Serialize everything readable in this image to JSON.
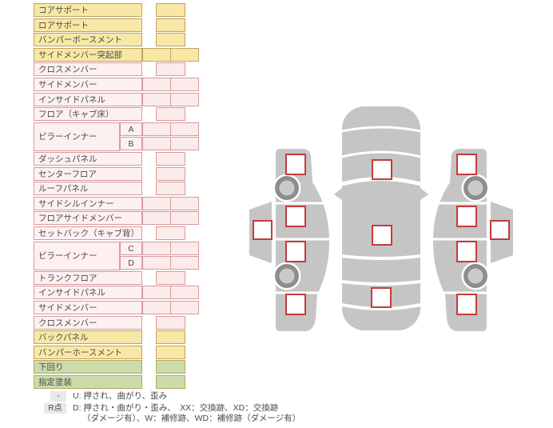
{
  "colors": {
    "categories": {
      "yellow": {
        "fill": "#f8e8a6",
        "border": "#c1a264"
      },
      "pink": {
        "fill": "#fdf0f0",
        "border": "#d79b9b"
      },
      "green": {
        "fill": "#cadcaa",
        "border": "#c2a35e"
      }
    },
    "cell": {
      "yellow": {
        "fill": "#f8e8a6",
        "border": "#c1a264"
      },
      "pink": {
        "fill": "#fcebeb",
        "border": "#d79b9b"
      },
      "green": {
        "fill": "#cadcaa",
        "border": "#c2a35e"
      }
    },
    "diagram": {
      "body": "#c5c5c5",
      "wheel_ring": "#8d8d8d",
      "wheel_hub": "#cacaca",
      "marker_border": "#c43b3b",
      "marker_fill": "#ffffff"
    },
    "legend_badge_bg": "#e8e8e8",
    "text": "#4a4a4a"
  },
  "parts_table": {
    "rows": [
      {
        "label": "コアサポート",
        "category": "yellow",
        "cells": 1
      },
      {
        "label": "ロアサポート",
        "category": "yellow",
        "cells": 1
      },
      {
        "label": "バンパーボースメント",
        "category": "yellow",
        "cells": 1
      },
      {
        "label": "サイドメンバー突起部",
        "category": "yellow",
        "cells": 2
      },
      {
        "label": "クロスメンバー",
        "category": "pink",
        "cells": 1
      },
      {
        "label": "サイドメンバー",
        "category": "pink",
        "cells": 2
      },
      {
        "label": "インサイドパネル",
        "category": "pink",
        "cells": 2
      },
      {
        "label": "フロア（キャブ床）",
        "category": "pink",
        "cells": 1
      },
      {
        "label": "ピラーインナー",
        "sub": "A",
        "rowspan": 2,
        "category": "pink",
        "cells": 2
      },
      {
        "sub": "B",
        "continuation": true,
        "category": "pink",
        "cells": 2
      },
      {
        "label": "ダッシュパネル",
        "category": "pink",
        "cells": 1
      },
      {
        "label": "センターフロア",
        "category": "pink",
        "cells": 1
      },
      {
        "label": "ルーフパネル",
        "category": "pink",
        "cells": 1
      },
      {
        "label": "サイドシルインナー",
        "category": "pink",
        "cells": 2
      },
      {
        "label": "フロアサイドメンバー",
        "category": "pink",
        "cells": 2
      },
      {
        "label": "セットバック（キャブ背）",
        "category": "pink",
        "cells": 1
      },
      {
        "label": "ピラーインナー",
        "sub": "C",
        "rowspan": 2,
        "category": "pink",
        "cells": 2
      },
      {
        "sub": "D",
        "continuation": true,
        "category": "pink",
        "cells": 2
      },
      {
        "label": "トランクフロア",
        "category": "pink",
        "cells": 1
      },
      {
        "label": "インサイドパネル",
        "category": "pink",
        "cells": 2
      },
      {
        "label": "サイドメンバー",
        "category": "pink",
        "cells": 2
      },
      {
        "label": "クロスメンバー",
        "category": "pink",
        "cells": 1
      },
      {
        "label": "バックパネル",
        "category": "yellow",
        "cells": 1
      },
      {
        "label": "バンパーホースメント",
        "category": "yellow",
        "cells": 1
      },
      {
        "label": "下回り",
        "category": "green",
        "cells": 1
      },
      {
        "label": "指定塗装",
        "category": "green",
        "cells": 1
      }
    ]
  },
  "legend": {
    "row1": {
      "badge": "-",
      "text": "U: 押され、曲がり、歪み"
    },
    "row2": {
      "badge": "R点",
      "line1": "D: 押され・曲がり・歪み、　XX：交換跡、XD：交換跡",
      "line2": "（ダメージ有）、W：補修跡、WD：補修跡（ダメージ有）"
    }
  },
  "diagram": {
    "markers": [
      "top-front",
      "top-center",
      "top-rear",
      "left-front-fender",
      "left-front-door",
      "left-rear-door",
      "left-rear-quarter",
      "left-sill",
      "right-front-fender",
      "right-front-door",
      "right-rear-door",
      "right-rear-quarter",
      "right-sill"
    ]
  }
}
